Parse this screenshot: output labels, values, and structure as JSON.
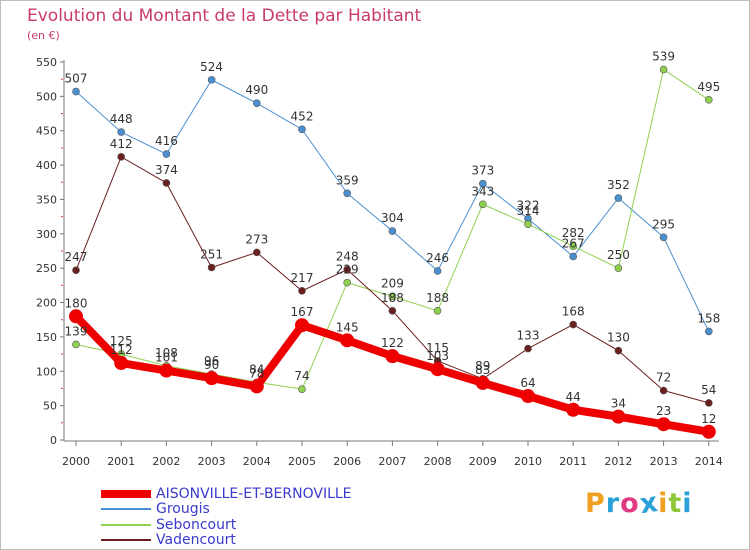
{
  "title": "Evolution du Montant de la Dette par Habitant",
  "subtitle": "(en €)",
  "brand": "Proxiti",
  "brand_colors": [
    "#f0a020",
    "#2a9fd8",
    "#e23a80",
    "#2a9fd8",
    "#f0a020",
    "#8fc63a",
    "#2a9fd8"
  ],
  "chart_data": {
    "type": "line",
    "x": [
      "2000",
      "2001",
      "2002",
      "2003",
      "2004",
      "2005",
      "2006",
      "2007",
      "2008",
      "2009",
      "2010",
      "2011",
      "2012",
      "2013",
      "2014"
    ],
    "ylim": [
      0,
      550
    ],
    "yticks": [
      0,
      50,
      100,
      150,
      200,
      250,
      300,
      350,
      400,
      450,
      500,
      550
    ],
    "grid": false,
    "legend_position": "bottom-left",
    "series": [
      {
        "name": "AISONVILLE-ET-BERNOVILLE",
        "color": "#ee0000",
        "bold": true,
        "values": [
          180,
          112,
          101,
          90,
          78,
          167,
          145,
          122,
          103,
          83,
          64,
          44,
          34,
          23,
          12
        ]
      },
      {
        "name": "Grougis",
        "color": "#4a90d0",
        "bold": false,
        "values": [
          507,
          448,
          416,
          524,
          490,
          452,
          359,
          304,
          246,
          373,
          322,
          267,
          352,
          295,
          158
        ]
      },
      {
        "name": "Seboncourt",
        "color": "#8fd14f",
        "bold": false,
        "values": [
          139,
          125,
          108,
          96,
          84,
          74,
          229,
          209,
          188,
          343,
          314,
          282,
          250,
          539,
          495
        ]
      },
      {
        "name": "Vadencourt",
        "color": "#6b1f1f",
        "bold": false,
        "values": [
          247,
          412,
          374,
          251,
          273,
          217,
          248,
          188,
          115,
          89,
          133,
          168,
          130,
          72,
          54
        ]
      }
    ]
  }
}
